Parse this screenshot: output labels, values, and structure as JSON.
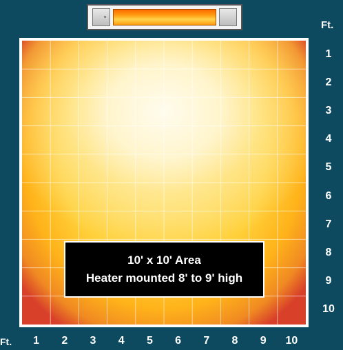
{
  "units": "Ft.",
  "caption": {
    "line1": "10' x 10' Area",
    "line2": "Heater mounted 8' to 9' high"
  },
  "row_labels": [
    "1",
    "2",
    "3",
    "4",
    "5",
    "6",
    "7",
    "8",
    "9",
    "10"
  ],
  "col_labels": [
    "1",
    "2",
    "3",
    "4",
    "5",
    "6",
    "7",
    "8",
    "9",
    "10"
  ],
  "colors": {
    "background": "#0d4a60",
    "hot_center": "#fffcee",
    "warm": "#ffd03a",
    "edge": "#d8402a"
  }
}
